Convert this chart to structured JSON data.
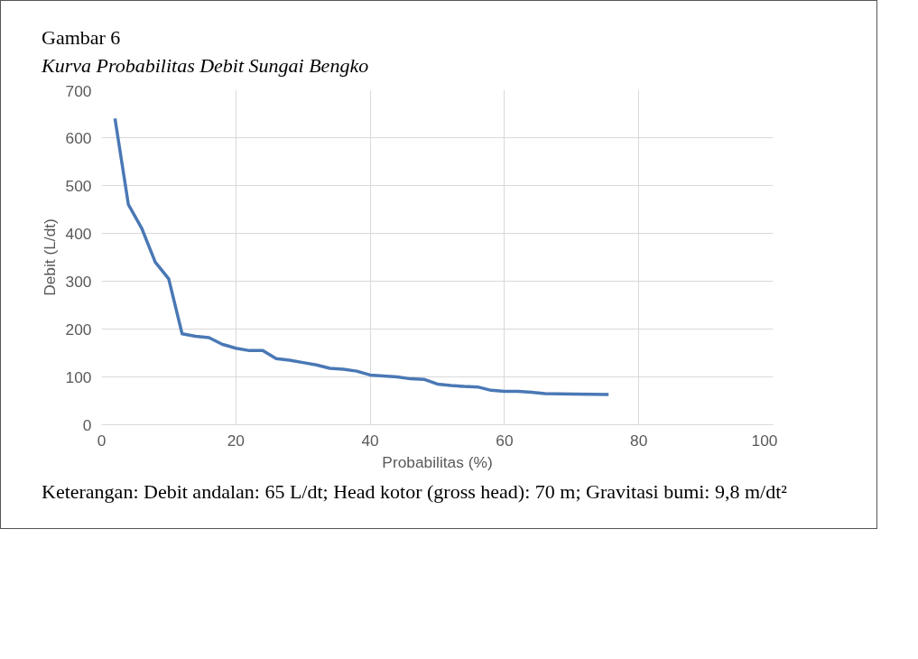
{
  "chart_data": {
    "type": "line",
    "title": "Gambar 6",
    "subtitle": "Kurva Probabilitas Debit Sungai Bengko",
    "xlabel": "Probabilitas (%)",
    "ylabel": "Debit (L/dt)",
    "annotations": [
      "Keterangan: Debit andalan: 65 L/dt; Head kotor (gross head): 70 m; Gravitasi bumi: 9,8 m/dt²"
    ],
    "x": [
      2,
      4,
      6,
      8,
      10,
      12,
      14,
      16,
      18,
      20,
      22,
      24,
      26,
      28,
      30,
      32,
      34,
      36,
      38,
      40,
      42,
      44,
      46,
      48,
      50,
      52,
      54,
      56,
      58,
      60,
      62,
      64,
      66,
      70,
      75.5
    ],
    "series": [
      {
        "color": "#4a78b5",
        "values": [
          640,
          460,
          410,
          340,
          305,
          190,
          185,
          182,
          168,
          160,
          155,
          155,
          138,
          135,
          130,
          125,
          118,
          116,
          112,
          104,
          102,
          100,
          96,
          95,
          85,
          82,
          80,
          79,
          72,
          70,
          70,
          68,
          65,
          64,
          63
        ]
      }
    ],
    "xlim": [
      0,
      100
    ],
    "xticks": [
      0,
      20,
      40,
      60,
      80,
      100
    ],
    "ylim": [
      0,
      700
    ],
    "yticks": [
      0,
      100,
      200,
      300,
      400,
      500,
      600,
      700
    ],
    "grid": true,
    "line_style": "solid"
  }
}
